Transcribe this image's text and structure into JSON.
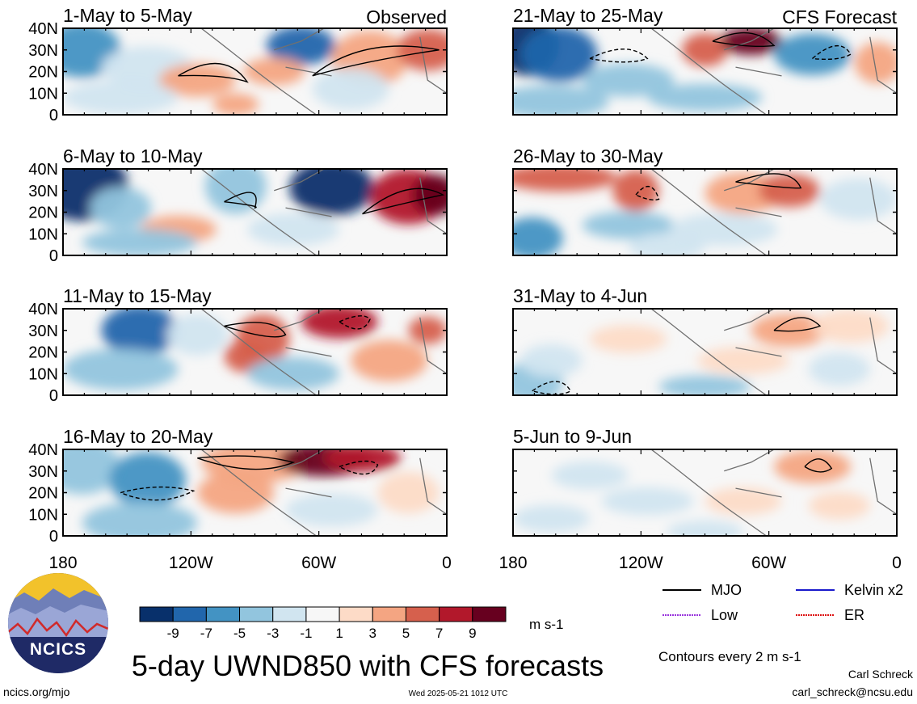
{
  "figure": {
    "title": "5-day UWND850 with CFS forecasts",
    "observed_tag": "Observed",
    "forecast_tag": "CFS Forecast",
    "units": "m s-1",
    "contour_note": "Contours every 2 m s-1",
    "site": "ncics.org/mjo",
    "timestamp": "Wed 2025-05-21 1012 UTC",
    "author": "Carl Schreck",
    "email": "carl_schreck@ncsu.edu",
    "logo_text": "NCICS"
  },
  "legend": [
    {
      "label": "MJO",
      "color": "#000000",
      "style": "solid"
    },
    {
      "label": "Kelvin x2",
      "color": "#1a1acc",
      "style": "solid"
    },
    {
      "label": "Low",
      "color": "#9933dd",
      "style": "dotted"
    },
    {
      "label": "ER",
      "color": "#dd1111",
      "style": "dotted"
    }
  ],
  "chart_data": {
    "type": "heatmap",
    "variable": "UWND850",
    "lat_ticks": [
      "40N",
      "30N",
      "20N",
      "10N",
      "0"
    ],
    "lon_ticks": [
      "180",
      "120W",
      "60W",
      "0"
    ],
    "lat_range": [
      0,
      40
    ],
    "lon_range": [
      -180,
      0
    ],
    "colorbar": {
      "levels": [
        -9,
        -7,
        -5,
        -3,
        -1,
        1,
        3,
        5,
        7,
        9
      ],
      "colors": [
        "#08306b",
        "#2166ac",
        "#4393c3",
        "#92c5de",
        "#d1e5f0",
        "#f7f7f7",
        "#fddbc7",
        "#f4a582",
        "#d6604d",
        "#b2182b",
        "#67001f"
      ]
    },
    "panels": [
      {
        "title": "1-May to 5-May",
        "kind": "observed"
      },
      {
        "title": "6-May to 10-May",
        "kind": "observed"
      },
      {
        "title": "11-May to 15-May",
        "kind": "observed"
      },
      {
        "title": "16-May to 20-May",
        "kind": "observed"
      },
      {
        "title": "21-May to 25-May",
        "kind": "forecast"
      },
      {
        "title": "26-May to 30-May",
        "kind": "forecast"
      },
      {
        "title": "31-May to 4-Jun",
        "kind": "forecast"
      },
      {
        "title": "5-Jun to 9-Jun",
        "kind": "forecast"
      }
    ]
  }
}
